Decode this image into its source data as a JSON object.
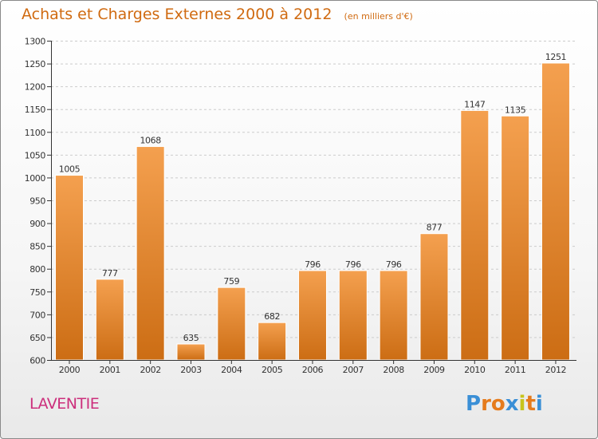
{
  "title": "Achats et Charges Externes 2000 à 2012",
  "subtitle": "(en milliers d'€)",
  "commune": "LAVENTIE",
  "brand": {
    "letters": [
      "P",
      "r",
      "o",
      "x",
      "i",
      "t",
      "i"
    ],
    "colors": [
      "#3a8fd6",
      "#e57b1c",
      "#e57b1c",
      "#3a8fd6",
      "#c8c41c",
      "#e57b1c",
      "#3a8fd6"
    ]
  },
  "colors": {
    "bar_top": "#f4a04f",
    "bar_bottom": "#cc6d14",
    "axis": "#333333",
    "grid": "#cccccc"
  },
  "chart_data": {
    "type": "bar",
    "categories": [
      "2000",
      "2001",
      "2002",
      "2003",
      "2004",
      "2005",
      "2006",
      "2007",
      "2008",
      "2009",
      "2010",
      "2011",
      "2012"
    ],
    "values": [
      1005,
      777,
      1068,
      635,
      759,
      682,
      796,
      796,
      796,
      877,
      1147,
      1135,
      1251
    ],
    "ylim": [
      600,
      1300
    ],
    "yticks": [
      600,
      650,
      700,
      750,
      800,
      850,
      900,
      950,
      1000,
      1050,
      1100,
      1150,
      1200,
      1250,
      1300
    ],
    "grid": "horizontal-dashed",
    "data_labels": true
  }
}
